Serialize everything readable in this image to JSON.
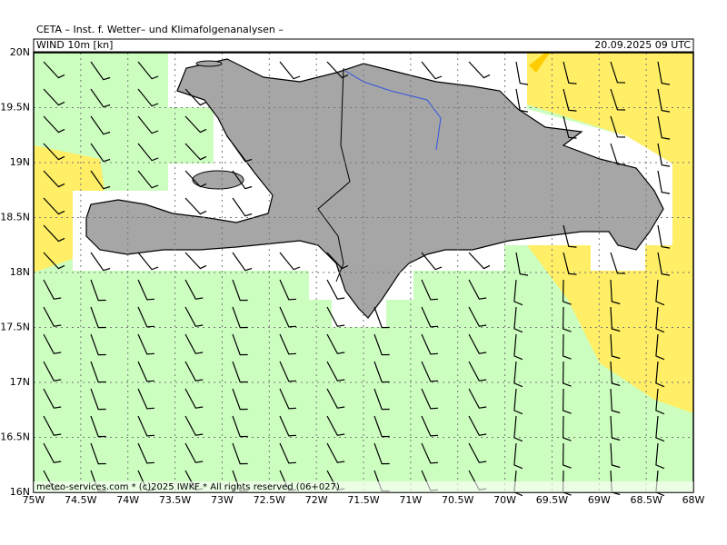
{
  "header": {
    "title": "CETA – Inst. f. Wetter– und Klimafolgenanalysen –",
    "field": "WIND 10m [kn]",
    "valid": "20.09.2025 09 UTC"
  },
  "footer": "meteo-services.com * (c)2025 IWKF * All rights reserved (06+027)",
  "map": {
    "lon_labels": [
      "75W",
      "74.5W",
      "74W",
      "73.5W",
      "73W",
      "72.5W",
      "72W",
      "71.5W",
      "71W",
      "70.5W",
      "70W",
      "69.5W",
      "69W",
      "68.5W",
      "68W"
    ],
    "lat_labels": [
      "20N",
      "19.5N",
      "19N",
      "18.5N",
      "18N",
      "17.5N",
      "17N",
      "16.5N",
      "16N"
    ]
  }
}
